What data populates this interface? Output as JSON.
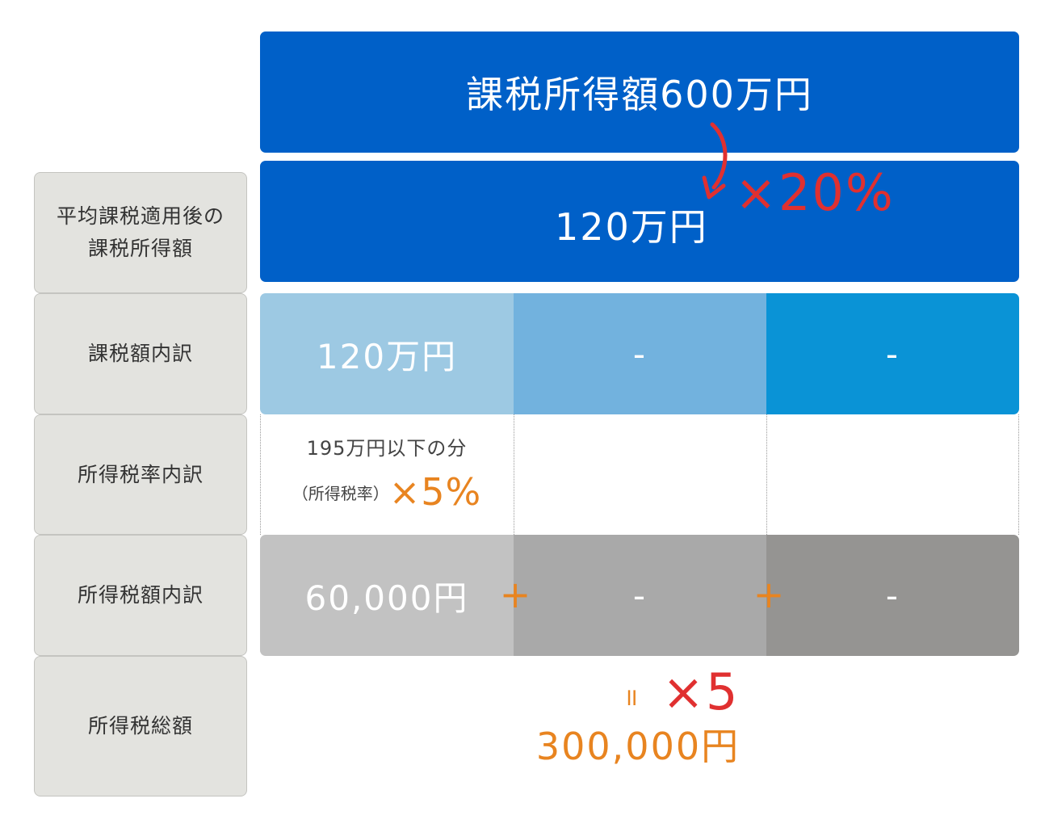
{
  "labels": {
    "row1_line1": "平均課税適用後の",
    "row1_line2": "課税所得額",
    "row2": "課税額内訳",
    "row3": "所得税率内訳",
    "row4": "所得税額内訳",
    "row5": "所得税総額"
  },
  "banner_top": "課税所得額600万円",
  "banner_avg": "120万円",
  "rate_annotation": "×20%",
  "breakdown": [
    "120万円",
    "-",
    "-"
  ],
  "rate_cell": {
    "line1": "195万円以下の分",
    "prefix": "（所得税率）",
    "rate": "×5%"
  },
  "tax_breakdown": [
    "60,000円",
    "-",
    "-"
  ],
  "plus_sign": "+",
  "equals_sign": "॥",
  "multiplier": "×5",
  "total": "300,000円",
  "colors": {
    "banner": "#0060c8",
    "breakdown": [
      "#9dc9e3",
      "#72b2de",
      "#0a93d6"
    ],
    "tax_breakdown": [
      "#c2c2c2",
      "#a9a9a9",
      "#959492"
    ],
    "label_bg": "#e3e3df",
    "orange": "#e88420",
    "red": "#e03030"
  }
}
